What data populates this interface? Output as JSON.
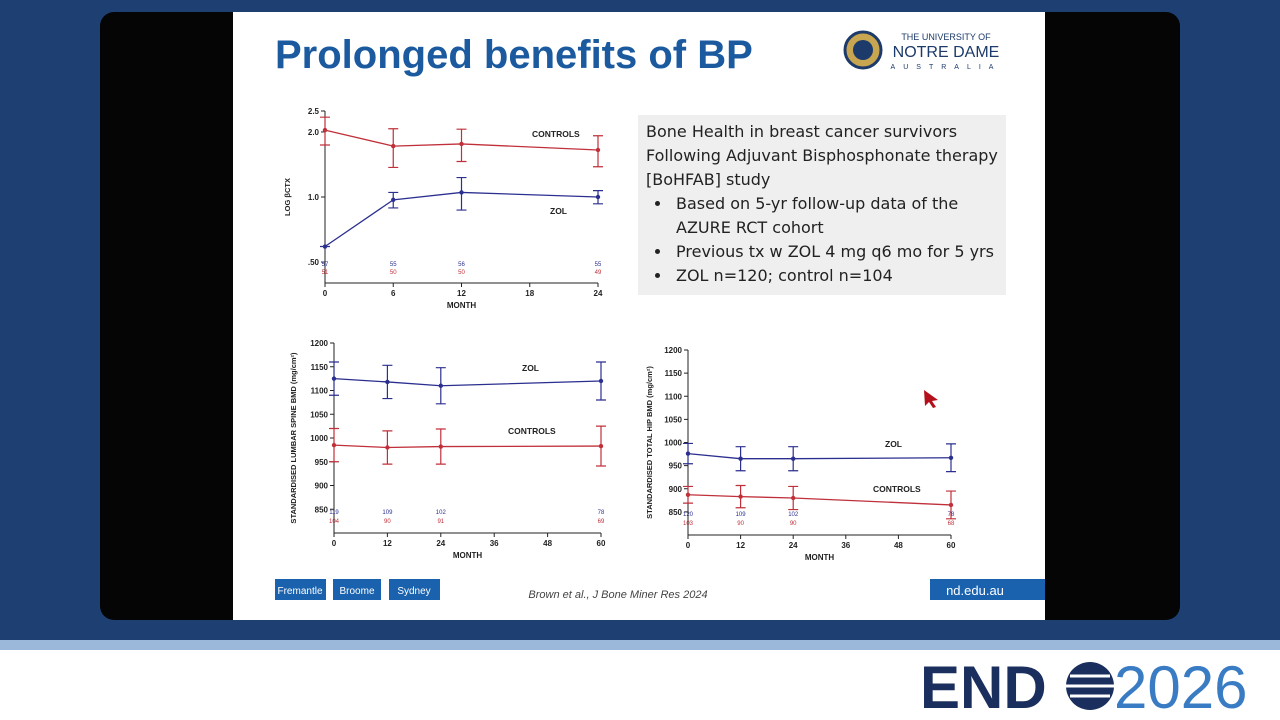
{
  "slide": {
    "title": "Prolonged benefits of BP",
    "logo": [
      "THE UNIVERSITY OF",
      "NOTRE DAME",
      "AUSTRALIA"
    ],
    "info_box": {
      "heading": "Bone Health in breast cancer survivors Following Adjuvant Bisphosphonate therapy [BoHFAB] study",
      "bullets": [
        "Based on 5-yr follow-up data of the AZURE RCT cohort",
        "Previous tx w ZOL 4 mg q6 mo for 5 yrs",
        "ZOL n=120; control n=104"
      ]
    },
    "footer": {
      "campuses": [
        "Fremantle",
        "Broome",
        "Sydney"
      ],
      "citation": "Brown et al., J Bone Miner Res 2024",
      "website": "nd.edu.au"
    }
  },
  "event_logo": {
    "left": "END",
    "right": "2026"
  },
  "chart_data": [
    {
      "type": "line",
      "x_label": "MONTH",
      "y_label": "LOG βCTX",
      "log_y": true,
      "x": [
        0,
        6,
        12,
        24
      ],
      "xlim": [
        0,
        24
      ],
      "xticks": [
        0,
        6,
        12,
        18,
        24
      ],
      "ylim": [
        0.4,
        2.5
      ],
      "yticks": [
        2.5,
        {
          "value": 2,
          "label": "2.0"
        },
        {
          "value": 1,
          "label": "1.0"
        },
        {
          "value": 0.5,
          "label": ".50"
        }
      ],
      "series": [
        {
          "name": "CONTROLS",
          "color": "#c0303a",
          "values": [
            2.04,
            1.72,
            1.76,
            1.65
          ],
          "errors": [
            0.3,
            0.35,
            0.3,
            0.27
          ],
          "n": [
            51,
            50,
            50,
            49
          ]
        },
        {
          "name": "ZOL",
          "color": "#2b2f8f",
          "values": [
            0.59,
            0.97,
            1.05,
            1.0
          ],
          "errors": [
            0,
            0.08,
            0.18,
            0.07
          ],
          "n": [
            57,
            55,
            56,
            55
          ]
        }
      ]
    },
    {
      "type": "line",
      "x_label": "MONTH",
      "y_label": "STANDARDISED  LUMBAR SPINE BMD (mg/cm²)",
      "x": [
        0,
        12,
        24,
        60
      ],
      "xlim": [
        0,
        60
      ],
      "xticks": [
        0,
        12,
        24,
        36,
        48,
        60
      ],
      "ylim": [
        800,
        1200
      ],
      "yticks": [
        850,
        900,
        950,
        1000,
        1050,
        1100,
        1150,
        1200
      ],
      "series": [
        {
          "name": "ZOL",
          "color": "#2b2f8f",
          "values": [
            1125,
            1118,
            1110,
            1120
          ],
          "errors": [
            35,
            35,
            38,
            40
          ],
          "n": [
            119,
            109,
            102,
            78
          ]
        },
        {
          "name": "CONTROLS",
          "color": "#c0303a",
          "values": [
            985,
            980,
            982,
            983
          ],
          "errors": [
            35,
            35,
            37,
            42
          ],
          "n": [
            104,
            90,
            91,
            69
          ]
        }
      ]
    },
    {
      "type": "line",
      "x_label": "MONTH",
      "y_label": "STANDARDISED  TOTAL HIP BMD (mg/cm²)",
      "x": [
        0,
        12,
        24,
        60
      ],
      "xlim": [
        0,
        60
      ],
      "xticks": [
        0,
        12,
        24,
        36,
        48,
        60
      ],
      "ylim": [
        800,
        1200
      ],
      "yticks": [
        850,
        900,
        950,
        1000,
        1050,
        1100,
        1150,
        1200
      ],
      "series": [
        {
          "name": "ZOL",
          "color": "#2b2f8f",
          "values": [
            976,
            965,
            965,
            967
          ],
          "errors": [
            22,
            26,
            26,
            30
          ],
          "n": [
            120,
            109,
            102,
            78
          ]
        },
        {
          "name": "CONTROLS",
          "color": "#c0303a",
          "values": [
            887,
            883,
            880,
            865
          ],
          "errors": [
            18,
            24,
            25,
            30
          ],
          "n": [
            103,
            90,
            90,
            68
          ]
        }
      ]
    }
  ]
}
